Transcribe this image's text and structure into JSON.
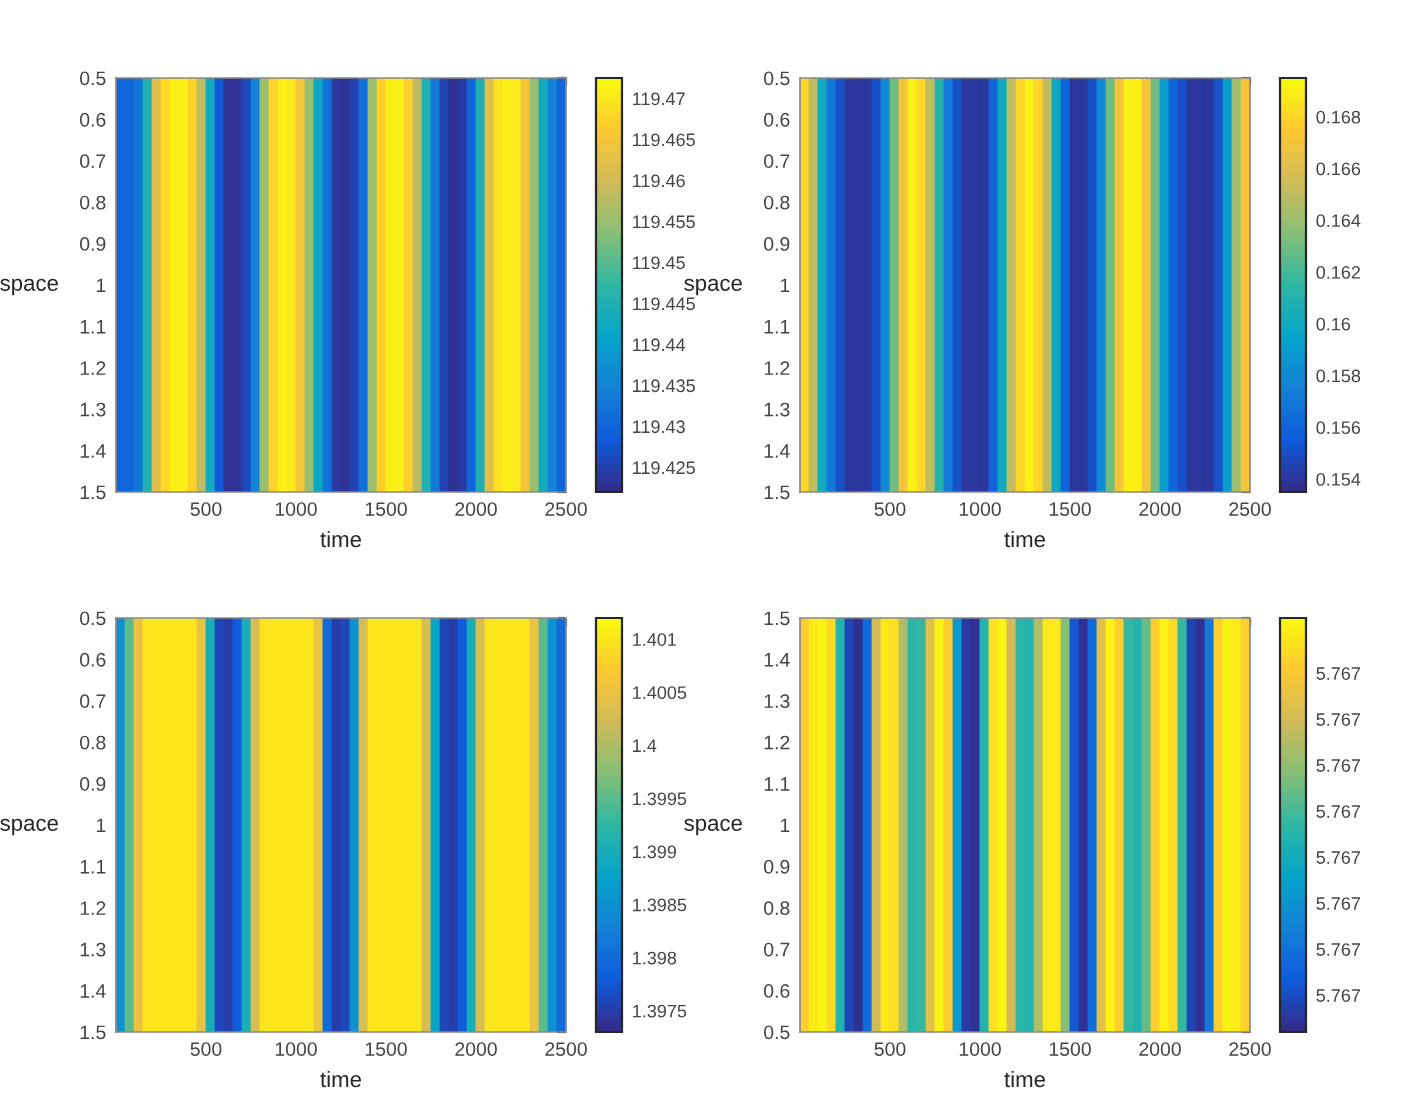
{
  "chart_data": [
    {
      "type": "heatmap",
      "xlabel": "time",
      "ylabel": "space",
      "x": [
        25,
        75,
        125,
        175,
        225,
        275,
        325,
        375,
        425,
        475,
        525,
        575,
        625,
        675,
        725,
        775,
        825,
        875,
        925,
        975,
        1025,
        1075,
        1125,
        1175,
        1225,
        1275,
        1325,
        1375,
        1425,
        1475,
        1525,
        1575,
        1625,
        1675,
        1725,
        1775,
        1825,
        1875,
        1925,
        1975,
        2025,
        2075,
        2125,
        2175,
        2225,
        2275,
        2325,
        2375,
        2425,
        2475
      ],
      "xlim": [
        0,
        2500
      ],
      "xticks": [
        500,
        1000,
        1500,
        2000,
        2500
      ],
      "ylim": [
        1.5,
        0.5
      ],
      "yticks": [
        0.5,
        0.6,
        0.7,
        0.8,
        0.9,
        1,
        1.1,
        1.2,
        1.3,
        1.4,
        1.5
      ],
      "cells": [
        [
          119.43,
          119.43,
          119.433,
          119.445,
          119.462,
          119.468,
          119.471,
          119.471,
          119.467,
          119.458,
          119.443,
          119.428,
          119.423,
          119.423,
          119.426,
          119.435,
          119.455,
          119.467,
          119.471,
          119.47,
          119.465,
          119.455,
          119.442,
          119.432,
          119.424,
          119.423,
          119.425,
          119.432,
          119.455,
          119.467,
          119.471,
          119.471,
          119.467,
          119.458,
          119.445,
          119.433,
          119.425,
          119.423,
          119.424,
          119.43,
          119.445,
          119.462,
          119.469,
          119.471,
          119.47,
          119.465,
          119.455,
          119.443,
          119.435,
          119.43
        ]
      ],
      "clim": [
        119.422,
        119.4725
      ],
      "cticks": [
        119.425,
        119.43,
        119.435,
        119.44,
        119.445,
        119.45,
        119.455,
        119.46,
        119.465,
        119.47
      ]
    },
    {
      "type": "heatmap",
      "xlabel": "time",
      "ylabel": "space",
      "x": [
        25,
        75,
        125,
        175,
        225,
        275,
        325,
        375,
        425,
        475,
        525,
        575,
        625,
        675,
        725,
        775,
        825,
        875,
        925,
        975,
        1025,
        1075,
        1125,
        1175,
        1225,
        1275,
        1325,
        1375,
        1425,
        1475,
        1525,
        1575,
        1625,
        1675,
        1725,
        1775,
        1825,
        1875,
        1925,
        1975,
        2025,
        2075,
        2125,
        2175,
        2225,
        2275,
        2325,
        2375,
        2425,
        2475
      ],
      "xlim": [
        0,
        2500
      ],
      "xticks": [
        500,
        1000,
        1500,
        2000,
        2500
      ],
      "ylim": [
        1.5,
        0.5
      ],
      "yticks": [
        0.5,
        0.6,
        0.7,
        0.8,
        0.9,
        1,
        1.1,
        1.2,
        1.3,
        1.4,
        1.5
      ],
      "cells": [
        [
          0.168,
          0.165,
          0.16,
          0.157,
          0.155,
          0.154,
          0.154,
          0.154,
          0.155,
          0.158,
          0.163,
          0.167,
          0.169,
          0.168,
          0.165,
          0.161,
          0.157,
          0.155,
          0.154,
          0.154,
          0.154,
          0.156,
          0.16,
          0.165,
          0.168,
          0.169,
          0.168,
          0.165,
          0.16,
          0.156,
          0.154,
          0.154,
          0.155,
          0.158,
          0.163,
          0.167,
          0.169,
          0.169,
          0.167,
          0.163,
          0.159,
          0.156,
          0.155,
          0.154,
          0.154,
          0.154,
          0.155,
          0.159,
          0.164,
          0.167
        ]
      ],
      "clim": [
        0.1535,
        0.1695
      ],
      "cticks": [
        0.154,
        0.156,
        0.158,
        0.16,
        0.162,
        0.164,
        0.166,
        0.168
      ]
    },
    {
      "type": "heatmap",
      "xlabel": "time",
      "ylabel": "space",
      "x": [
        25,
        75,
        125,
        175,
        225,
        275,
        325,
        375,
        425,
        475,
        525,
        575,
        625,
        675,
        725,
        775,
        825,
        875,
        925,
        975,
        1025,
        1075,
        1125,
        1175,
        1225,
        1275,
        1325,
        1375,
        1425,
        1475,
        1525,
        1575,
        1625,
        1675,
        1725,
        1775,
        1825,
        1875,
        1925,
        1975,
        2025,
        2075,
        2125,
        2175,
        2225,
        2275,
        2325,
        2375,
        2425,
        2475
      ],
      "xlim": [
        0,
        2500
      ],
      "xticks": [
        500,
        1000,
        1500,
        2000,
        2500
      ],
      "ylim": [
        1.5,
        0.5
      ],
      "yticks": [
        0.5,
        0.6,
        0.7,
        0.8,
        0.9,
        1,
        1.1,
        1.2,
        1.3,
        1.4,
        1.5
      ],
      "cells": [
        [
          1.3985,
          1.3995,
          1.4005,
          1.401,
          1.401,
          1.401,
          1.401,
          1.401,
          1.401,
          1.4005,
          1.399,
          1.3976,
          1.3975,
          1.3978,
          1.399,
          1.4003,
          1.401,
          1.401,
          1.401,
          1.401,
          1.401,
          1.401,
          1.4005,
          1.398,
          1.3975,
          1.3976,
          1.3985,
          1.4003,
          1.401,
          1.401,
          1.401,
          1.401,
          1.401,
          1.401,
          1.4003,
          1.3988,
          1.3976,
          1.3975,
          1.3978,
          1.399,
          1.4003,
          1.401,
          1.401,
          1.401,
          1.401,
          1.401,
          1.4005,
          1.3995,
          1.3985,
          1.398
        ]
      ],
      "clim": [
        1.3973,
        1.4012
      ],
      "cticks": [
        1.3975,
        1.398,
        1.3985,
        1.399,
        1.3995,
        1.4,
        1.4005,
        1.401
      ]
    },
    {
      "type": "heatmap",
      "xlabel": "time",
      "ylabel": "space",
      "x": [
        25,
        75,
        125,
        175,
        225,
        275,
        325,
        375,
        425,
        475,
        525,
        575,
        625,
        675,
        725,
        775,
        825,
        875,
        925,
        975,
        1025,
        1075,
        1125,
        1175,
        1225,
        1275,
        1325,
        1375,
        1425,
        1475,
        1525,
        1575,
        1625,
        1675,
        1725,
        1775,
        1825,
        1875,
        1925,
        1975,
        2025,
        2075,
        2125,
        2175,
        2225,
        2275,
        2325,
        2375,
        2425,
        2475
      ],
      "xlim": [
        0,
        2500
      ],
      "xticks": [
        500,
        1000,
        1500,
        2000,
        2500
      ],
      "ylim": [
        0.5,
        1.5
      ],
      "yticks": [
        0.5,
        0.6,
        0.7,
        0.8,
        0.9,
        1,
        1.1,
        1.2,
        1.3,
        1.4,
        1.5
      ],
      "cells": [
        [
          5.7674,
          5.76743,
          5.76744,
          5.76741,
          5.76721,
          5.76703,
          5.76701,
          5.76708,
          5.76734,
          5.76743,
          5.76742,
          5.76731,
          5.76722,
          5.76723,
          5.76736,
          5.76744,
          5.7674,
          5.76715,
          5.76702,
          5.76701,
          5.76721,
          5.76742,
          5.76744,
          5.76734,
          5.76722,
          5.76721,
          5.76731,
          5.76743,
          5.76743,
          5.76728,
          5.76705,
          5.76701,
          5.76708,
          5.76736,
          5.76744,
          5.7674,
          5.76723,
          5.76721,
          5.76726,
          5.7674,
          5.76744,
          5.76741,
          5.76723,
          5.76703,
          5.76701,
          5.7671,
          5.7674,
          5.76744,
          5.76743,
          5.7674
        ]
      ],
      "clim": [
        5.767,
        5.76745
      ],
      "cticks": [
        {
          "value": 5.76704,
          "label": "5.767"
        },
        {
          "value": 5.76709,
          "label": "5.767"
        },
        {
          "value": 5.76714,
          "label": "5.767"
        },
        {
          "value": 5.76719,
          "label": "5.767"
        },
        {
          "value": 5.76724,
          "label": "5.767"
        },
        {
          "value": 5.76729,
          "label": "5.767"
        },
        {
          "value": 5.76734,
          "label": "5.767"
        },
        {
          "value": 5.76739,
          "label": "5.767"
        }
      ]
    }
  ]
}
